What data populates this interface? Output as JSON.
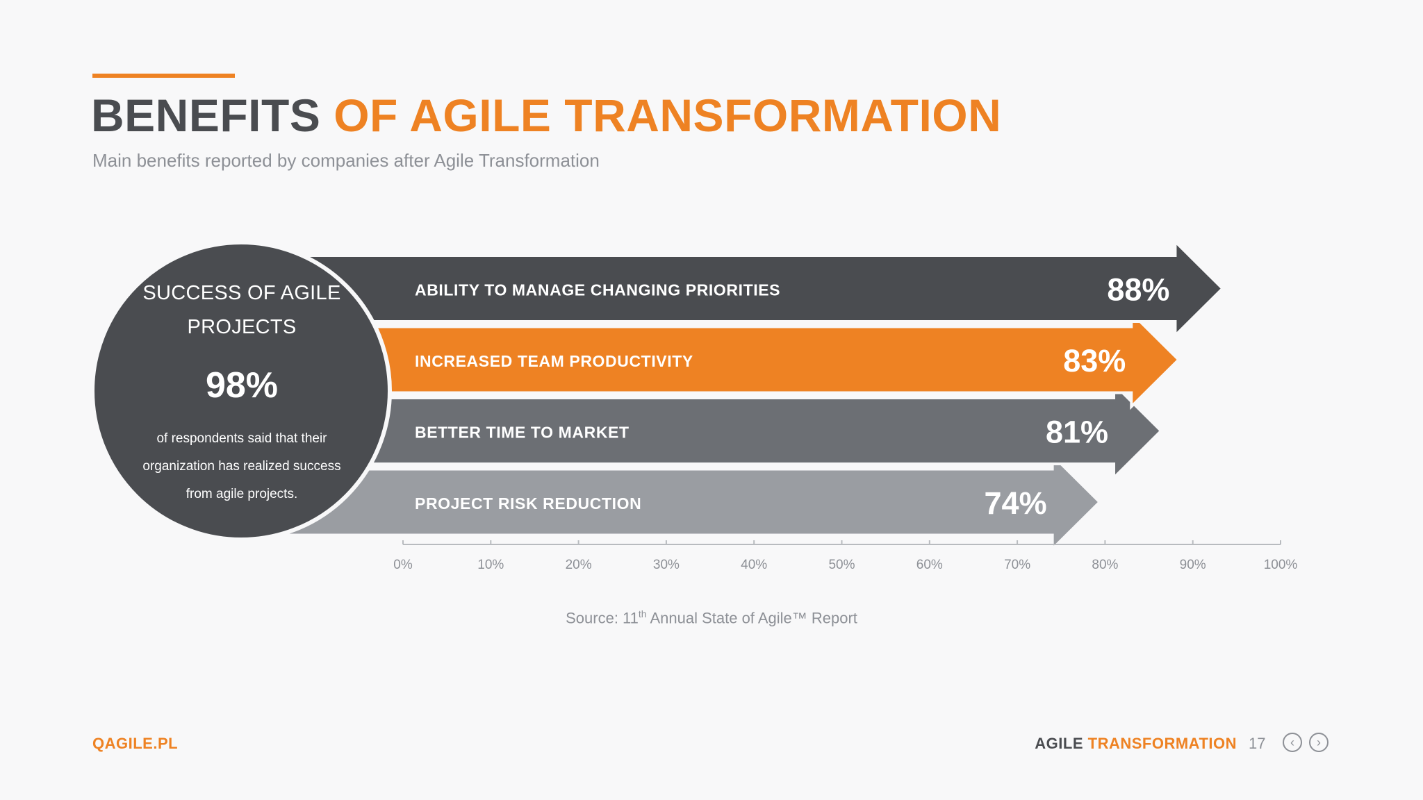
{
  "header": {
    "title_part1": "BENEFITS",
    "title_part2": "OF AGILE TRANSFORMATION",
    "subtitle": "Main benefits reported by companies after Agile Transformation"
  },
  "circle": {
    "title": "SUCCESS OF AGILE PROJECTS",
    "value": "98%",
    "description": "of respondents said that their organization has realized success from agile projects."
  },
  "chart_data": {
    "type": "bar",
    "orientation": "horizontal",
    "categories": [
      "ABILITY TO MANAGE CHANGING PRIORITIES",
      "INCREASED TEAM PRODUCTIVITY",
      "BETTER TIME TO MARKET",
      "PROJECT RISK REDUCTION"
    ],
    "values": [
      88,
      83,
      81,
      74
    ],
    "value_labels": [
      "88%",
      "83%",
      "81%",
      "74%"
    ],
    "colors": [
      "#4a4c50",
      "#ee8223",
      "#6c6f74",
      "#9a9da2"
    ],
    "xlim": [
      0,
      100
    ],
    "x_ticks": [
      "0%",
      "10%",
      "20%",
      "30%",
      "40%",
      "50%",
      "60%",
      "70%",
      "80%",
      "90%",
      "100%"
    ],
    "grid": false
  },
  "source": {
    "prefix": "Source: 11",
    "sup": "th",
    "suffix": " Annual State of Agile™ Report"
  },
  "footer": {
    "left": "QAGILE.PL",
    "right_part1": "AGILE",
    "right_part2": " TRANSFORMATION",
    "page": "17",
    "prev": "‹",
    "next": "›"
  }
}
